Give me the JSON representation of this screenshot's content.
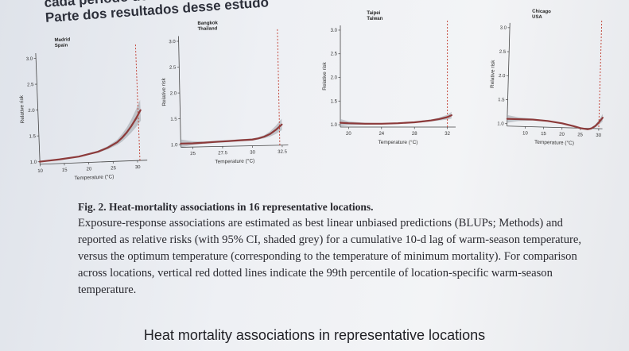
{
  "header": {
    "line1": "cada período de",
    "line2": "Parte dos resultados desse estudo"
  },
  "figure": {
    "caption_title": "Fig. 2. Heat-mortality associations in 16 representative locations.",
    "caption_body": "Exposure-response associations are estimated as best linear unbiased predictions (BLUPs; Methods) and reported as relative risks (with 95% CI, shaded grey) for a cumulative 10-d lag of warm-season temperature, versus the optimum temperature (corresponding to the temperature of minimum mortality). For comparison across locations, vertical red dotted lines indicate the 99th percentile of location-specific warm-season temperature."
  },
  "slide_title": "Heat mortality associations in representative locations",
  "colors": {
    "curve": "#8c3a3a",
    "ci": "#9aa0a8",
    "threshold": "#c0392b"
  },
  "chart_data": [
    {
      "type": "line",
      "title": "Madrid\nSpain",
      "xlabel": "Temperature (°C)",
      "ylabel": "Relative risk",
      "xlim": [
        10,
        32
      ],
      "ylim": [
        0.95,
        3.1
      ],
      "xticks": [
        10,
        15,
        20,
        25,
        30
      ],
      "yticks": [
        1.0,
        1.5,
        2.0,
        2.5,
        3.0
      ],
      "threshold_x": 30.5,
      "x": [
        10,
        14,
        18,
        22,
        24,
        26,
        27,
        28,
        29,
        30,
        31
      ],
      "y": [
        1.0,
        1.03,
        1.07,
        1.15,
        1.22,
        1.32,
        1.4,
        1.5,
        1.62,
        1.76,
        1.92
      ],
      "ci_low": [
        0.99,
        1.02,
        1.06,
        1.13,
        1.19,
        1.27,
        1.33,
        1.41,
        1.5,
        1.6,
        1.72
      ],
      "ci_high": [
        1.01,
        1.04,
        1.08,
        1.17,
        1.25,
        1.37,
        1.47,
        1.59,
        1.74,
        1.92,
        2.12
      ]
    },
    {
      "type": "line",
      "title": "Bangkok\nThailand",
      "xlabel": "Temperature (°C)",
      "ylabel": "Relative risk",
      "xlim": [
        24,
        33
      ],
      "ylim": [
        0.95,
        3.1
      ],
      "xticks": [
        25.0,
        27.5,
        30.0,
        32.5
      ],
      "yticks": [
        1.0,
        1.5,
        2.0,
        2.5,
        3.0
      ],
      "threshold_x": 32.3,
      "x": [
        24,
        25,
        26,
        27,
        28,
        29,
        30,
        30.5,
        31,
        31.5,
        32,
        32.5
      ],
      "y": [
        1.02,
        1.02,
        1.03,
        1.04,
        1.05,
        1.06,
        1.07,
        1.09,
        1.12,
        1.17,
        1.25,
        1.35
      ],
      "ci_low": [
        0.95,
        0.99,
        1.01,
        1.02,
        1.03,
        1.04,
        1.05,
        1.07,
        1.09,
        1.12,
        1.17,
        1.24
      ],
      "ci_high": [
        1.1,
        1.06,
        1.05,
        1.06,
        1.07,
        1.08,
        1.09,
        1.11,
        1.15,
        1.22,
        1.33,
        1.46
      ]
    },
    {
      "type": "line",
      "title": "Taipei\nTaiwan",
      "xlabel": "Temperature (°C)",
      "ylabel": "Relative risk",
      "xlim": [
        19,
        33
      ],
      "ylim": [
        0.95,
        3.1
      ],
      "xticks": [
        20,
        24,
        28,
        32
      ],
      "yticks": [
        1.0,
        1.5,
        2.0,
        2.5,
        3.0
      ],
      "threshold_x": 32,
      "x": [
        19,
        20,
        22,
        24,
        26,
        28,
        29,
        30,
        31,
        32,
        32.5
      ],
      "y": [
        1.04,
        1.03,
        1.02,
        1.02,
        1.03,
        1.05,
        1.07,
        1.09,
        1.12,
        1.16,
        1.2
      ],
      "ci_low": [
        0.96,
        0.99,
        1.0,
        1.01,
        1.02,
        1.04,
        1.05,
        1.07,
        1.09,
        1.11,
        1.13
      ],
      "ci_high": [
        1.12,
        1.07,
        1.04,
        1.03,
        1.04,
        1.06,
        1.09,
        1.11,
        1.15,
        1.21,
        1.27
      ]
    },
    {
      "type": "line",
      "title": "Chicago\nUSA",
      "xlabel": "Temperature (°C)",
      "ylabel": "Relative risk",
      "xlim": [
        5,
        31
      ],
      "ylim": [
        0.95,
        3.1
      ],
      "xticks": [
        10,
        15,
        20,
        25,
        30
      ],
      "yticks": [
        1.0,
        1.5,
        2.0,
        2.5,
        3.0
      ],
      "threshold_x": 30,
      "x": [
        5,
        8,
        12,
        16,
        20,
        23,
        25,
        27,
        28,
        29,
        30,
        31
      ],
      "y": [
        1.1,
        1.1,
        1.1,
        1.08,
        1.04,
        0.99,
        0.95,
        0.93,
        0.95,
        1.0,
        1.08,
        1.18
      ],
      "ci_low": [
        1.02,
        1.06,
        1.08,
        1.07,
        1.03,
        0.98,
        0.94,
        0.92,
        0.93,
        0.97,
        1.03,
        1.1
      ],
      "ci_high": [
        1.18,
        1.14,
        1.12,
        1.09,
        1.05,
        1.0,
        0.96,
        0.95,
        0.97,
        1.03,
        1.13,
        1.26
      ]
    }
  ]
}
